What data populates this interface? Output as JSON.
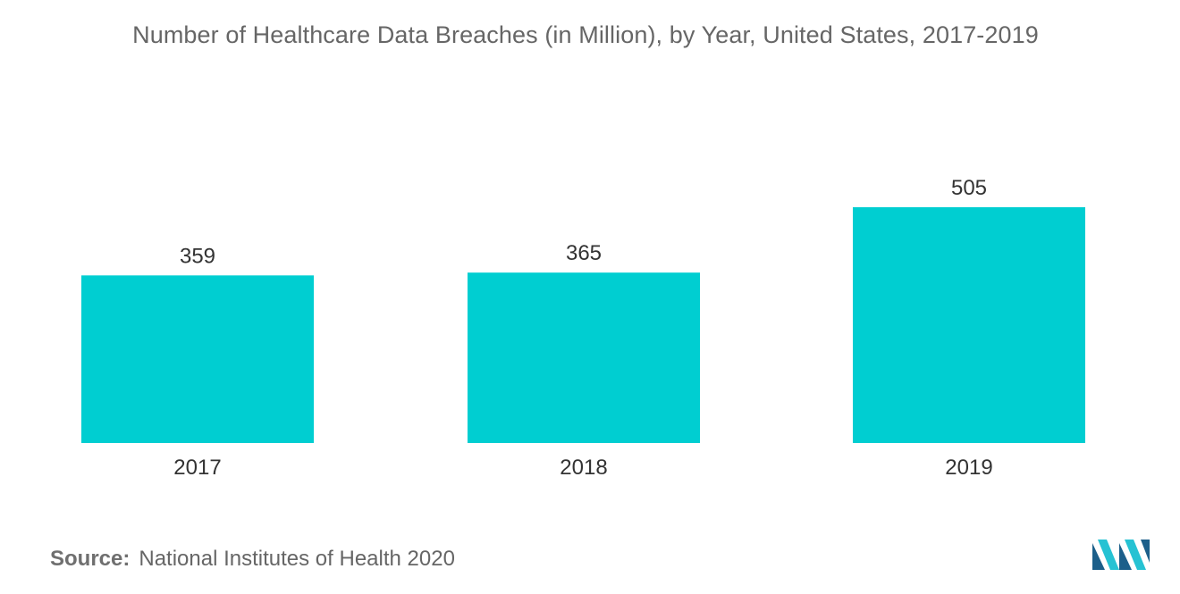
{
  "title": "Number of Healthcare Data Breaches (in Million), by Year, United States, 2017-2019",
  "source": {
    "label": "Source:",
    "text": "National Institutes of Health 2020"
  },
  "logo_icon": "mordor-intelligence-logo-icon",
  "colors": {
    "bar": "#00CED1",
    "text": "#333333",
    "muted": "#666666",
    "logo_dark": "#1c5f8a",
    "logo_light": "#26c2d3"
  },
  "chart_data": {
    "type": "bar",
    "categories": [
      "2017",
      "2018",
      "2019"
    ],
    "values": [
      359,
      365,
      505
    ],
    "title": "Number of Healthcare Data Breaches (in Million), by Year, United States, 2017-2019",
    "xlabel": "",
    "ylabel": "",
    "ylim": [
      0,
      505
    ],
    "grid": false,
    "legend": "none"
  }
}
